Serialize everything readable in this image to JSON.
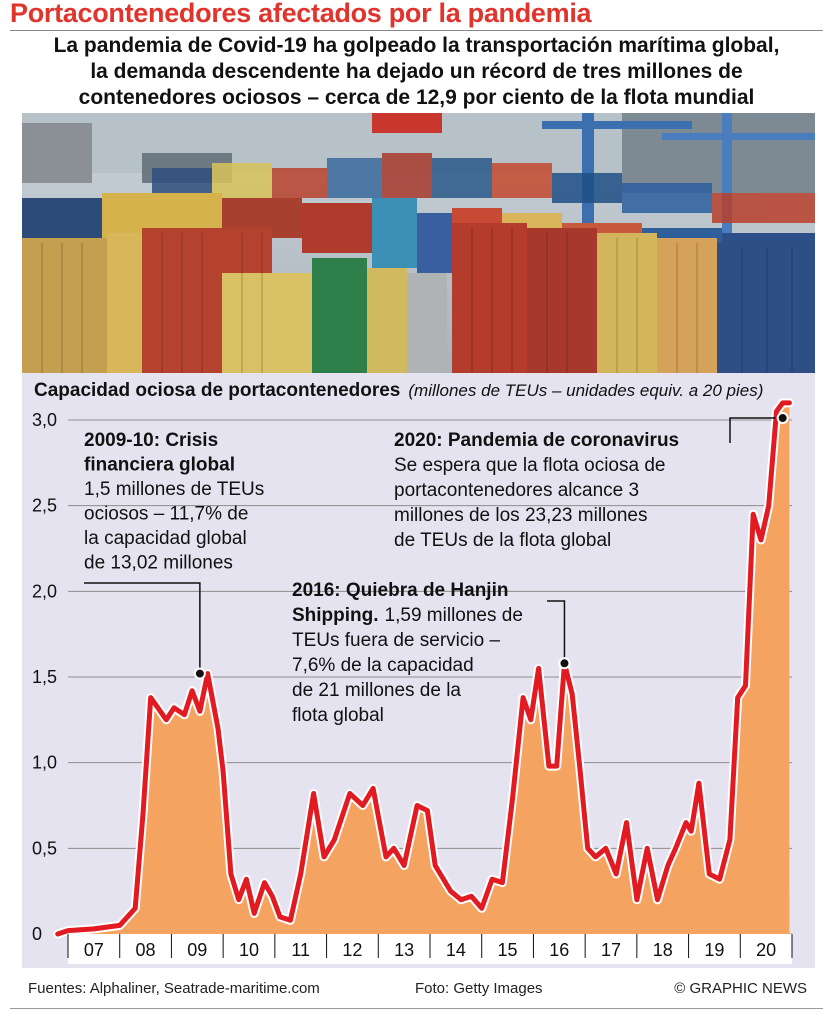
{
  "header": {
    "title": "Portacontenedores afectados por la pandemia",
    "subtitle_lines": [
      "La pandemia de Covid-19 ha golpeado la transportación marítima global,",
      "la demanda descendente ha dejado un récord de tres millones de",
      "contenedores ociosos – cerca de 12,9 por ciento de la flota mundial"
    ]
  },
  "photo": {
    "icon": "container-port-photo"
  },
  "chart_data": {
    "type": "area",
    "title": "Capacidad ociosa de portacontenedores",
    "unit_label": "(millones de TEUs – unidades equiv. a 20 pies)",
    "ylim": [
      0,
      3.0
    ],
    "yticks": [
      0,
      0.5,
      1.0,
      1.5,
      2.0,
      2.5,
      3.0
    ],
    "ytick_labels": [
      "0",
      "0,5",
      "1,0",
      "1,5",
      "2,0",
      "2,5",
      "3,0"
    ],
    "xlim": [
      2007,
      2021
    ],
    "xtick_labels": [
      "07",
      "08",
      "09",
      "10",
      "11",
      "12",
      "13",
      "14",
      "15",
      "16",
      "17",
      "18",
      "19",
      "20"
    ],
    "grid": true,
    "colors": {
      "line": "#e21a22",
      "area": "#f4a460",
      "background": "#e5e3ef"
    },
    "series": [
      {
        "x": [
          2006.8,
          2007.0,
          2007.5,
          2008.0,
          2008.3,
          2008.45,
          2008.6,
          2008.9,
          2009.05,
          2009.25,
          2009.4,
          2009.55,
          2009.7,
          2009.9,
          2010.0,
          2010.15,
          2010.3,
          2010.45,
          2010.6,
          2010.8,
          2010.95,
          2011.1,
          2011.3,
          2011.5,
          2011.75,
          2011.95,
          2012.15,
          2012.45,
          2012.7,
          2012.9,
          2013.15,
          2013.3,
          2013.5,
          2013.75,
          2013.95,
          2014.1,
          2014.4,
          2014.6,
          2014.8,
          2015.0,
          2015.2,
          2015.4,
          2015.6,
          2015.8,
          2015.95,
          2016.1,
          2016.3,
          2016.45,
          2016.6,
          2016.75,
          2016.9,
          2017.05,
          2017.2,
          2017.4,
          2017.6,
          2017.8,
          2018.0,
          2018.2,
          2018.4,
          2018.6,
          2018.75,
          2018.95,
          2019.05,
          2019.2,
          2019.4,
          2019.6,
          2019.8,
          2019.95,
          2020.1,
          2020.25,
          2020.4,
          2020.55,
          2020.7,
          2020.82,
          2020.88,
          2020.95
        ],
        "values": [
          0.0,
          0.02,
          0.03,
          0.05,
          0.15,
          0.7,
          1.38,
          1.25,
          1.32,
          1.28,
          1.42,
          1.3,
          1.52,
          1.2,
          0.95,
          0.35,
          0.2,
          0.32,
          0.12,
          0.3,
          0.22,
          0.1,
          0.08,
          0.35,
          0.82,
          0.45,
          0.55,
          0.82,
          0.75,
          0.85,
          0.45,
          0.5,
          0.4,
          0.75,
          0.72,
          0.4,
          0.25,
          0.2,
          0.22,
          0.15,
          0.32,
          0.3,
          0.8,
          1.38,
          1.25,
          1.55,
          0.98,
          0.98,
          1.58,
          1.4,
          0.96,
          0.5,
          0.45,
          0.5,
          0.35,
          0.65,
          0.2,
          0.5,
          0.2,
          0.4,
          0.5,
          0.65,
          0.6,
          0.88,
          0.35,
          0.32,
          0.55,
          1.38,
          1.45,
          2.45,
          2.3,
          2.5,
          3.05,
          3.1,
          3.1,
          3.1
        ]
      }
    ],
    "annotations": [
      {
        "id": "crisis",
        "x": 2009.55,
        "value": 1.52,
        "heading_lines": [
          "2009-10: Crisis",
          "financiera global"
        ],
        "body_lines": [
          "1,5 millones de TEUs",
          "ociosos – 11,7% de",
          "la capacidad global",
          "de 13,02 millones"
        ]
      },
      {
        "id": "hanjin",
        "x": 2016.6,
        "value": 1.58,
        "heading_lines": [
          "2016: Quiebra de Hanjin",
          "Shipping."
        ],
        "tail_first_body": "1,59 millones de",
        "body_lines": [
          "TEUs fuera de servicio –",
          "7,6% de la capacidad",
          "de 21 millones de la",
          "flota global"
        ]
      },
      {
        "id": "pandemia",
        "x": 2020.82,
        "value": 3.1,
        "heading_lines": [
          "2020: Pandemia de coronavirus"
        ],
        "body_lines": [
          "Se espera que la flota ociosa de",
          "portacontenedores alcance 3",
          "millones de los 23,23 millones",
          "de TEUs de la flota global"
        ]
      }
    ]
  },
  "footer": {
    "sources": "Fuentes: Alphaliner, Seatrade-maritime.com",
    "photo_credit": "Foto: Getty Images",
    "copyright": "© GRAPHIC NEWS"
  }
}
